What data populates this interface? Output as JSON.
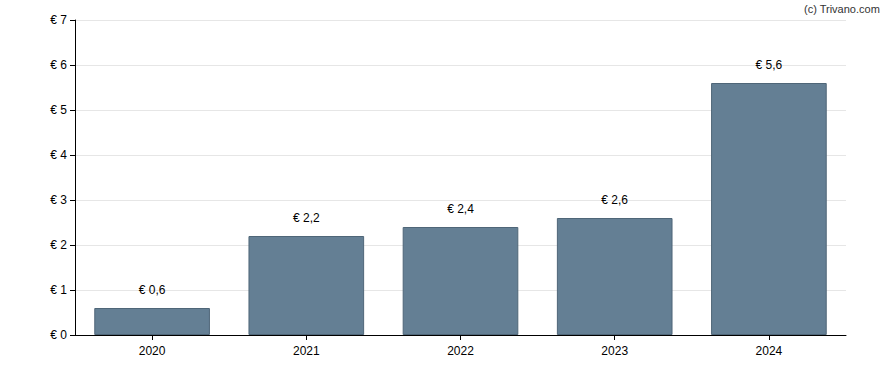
{
  "chart_data": {
    "type": "bar",
    "annotations": [
      "(c) Trivano.com"
    ],
    "categories": [
      "2020",
      "2021",
      "2022",
      "2023",
      "2024"
    ],
    "values": [
      0.6,
      2.2,
      2.4,
      2.6,
      5.6
    ],
    "value_labels": [
      "€ 0,6",
      "€ 2,2",
      "€ 2,4",
      "€ 2,6",
      "€ 5,6"
    ],
    "data_labels": true,
    "color": "#647f94",
    "ylim": [
      0,
      7
    ],
    "yticks": [
      {
        "value": 0,
        "label": "€ 0"
      },
      {
        "value": 1,
        "label": "€ 1"
      },
      {
        "value": 2,
        "label": "€ 2"
      },
      {
        "value": 3,
        "label": "€ 3"
      },
      {
        "value": 4,
        "label": "€ 4"
      },
      {
        "value": 5,
        "label": "€ 5"
      },
      {
        "value": 6,
        "label": "€ 6"
      },
      {
        "value": 7,
        "label": "€ 7"
      }
    ],
    "grid": true
  }
}
